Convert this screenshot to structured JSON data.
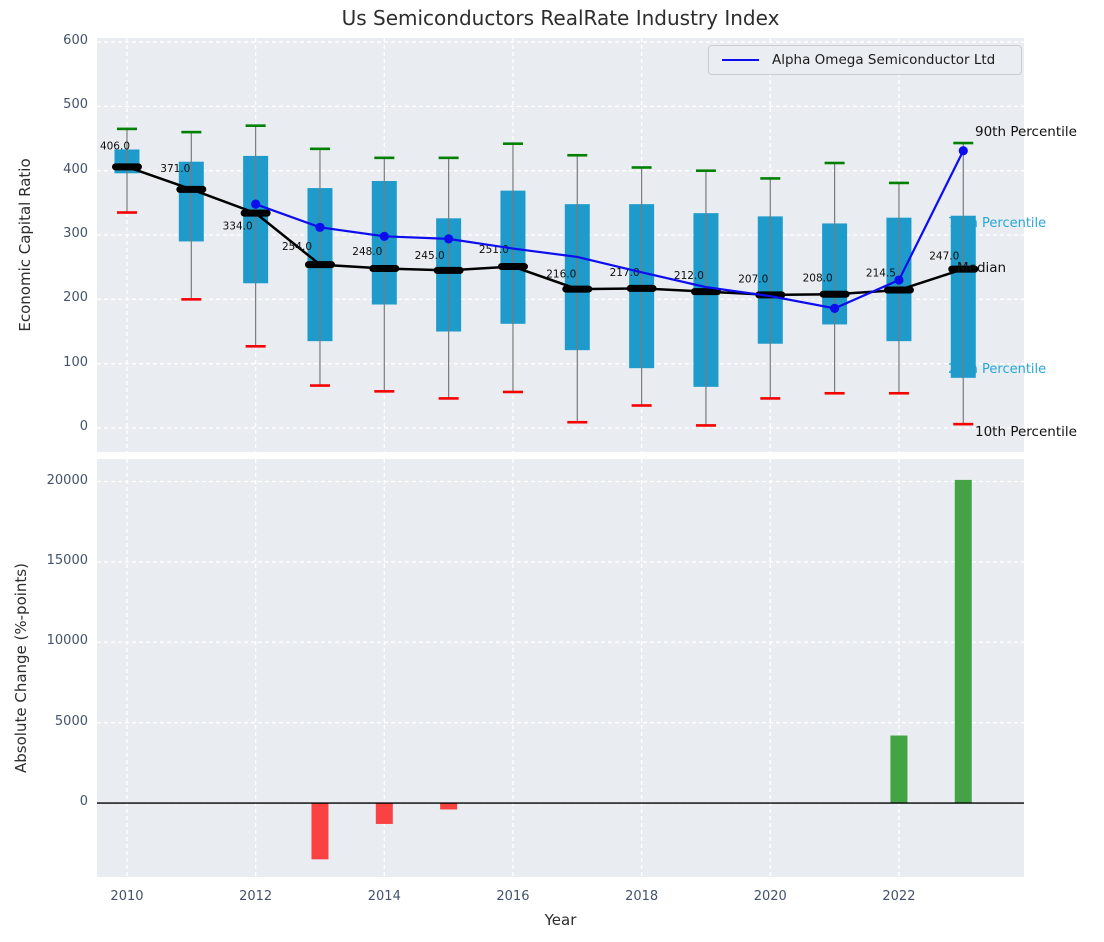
{
  "title": "Us Semiconductors RealRate Industry Index",
  "legend": {
    "series_label": "Alpha Omega Semiconductor Ltd"
  },
  "axes": {
    "xlabel": "Year",
    "top_ylabel": "Economic Capital Ratio",
    "bottom_ylabel": "Absolute Change (%-points)",
    "top_yticks": [
      0,
      100,
      200,
      300,
      400,
      500,
      600
    ],
    "bottom_yticks": [
      0,
      5000,
      10000,
      15000,
      20000
    ],
    "xticks": [
      2010,
      2012,
      2014,
      2016,
      2018,
      2020,
      2022
    ]
  },
  "annotations": {
    "p90": "90th Percentile",
    "p75": "75th Percentile",
    "median_label": "Median",
    "p25": "25th Percentile",
    "p10": "10th Percentile"
  },
  "colors": {
    "panel_bg": "#e9edf1",
    "grid": "#ffffff",
    "box": "#1f9bcb",
    "teal_text": "#29a7d7",
    "green_cap": "#008000",
    "red_cap": "#f80000",
    "whisker": "#7a7a7a",
    "median": "#000000",
    "company_line": "#0d0dee",
    "bar_positive": "#44a344",
    "bar_negative": "#fb4242",
    "zero_line": "#000000"
  },
  "chart_data": [
    {
      "type": "boxplot+line",
      "title": "Us Semiconductors RealRate Industry Index",
      "ylabel": "Economic Capital Ratio",
      "ylim": [
        -37,
        606
      ],
      "xlim": [
        2009.53,
        2023.94
      ],
      "grid": true,
      "legend_position": "upper right",
      "years": [
        2010,
        2011,
        2012,
        2013,
        2014,
        2015,
        2016,
        2017,
        2018,
        2019,
        2020,
        2021,
        2022,
        2023
      ],
      "median": [
        406,
        371,
        334,
        254,
        248,
        245,
        251,
        216,
        217,
        212,
        207,
        208,
        214.5,
        247
      ],
      "median_labels": [
        "406.0",
        "371.0",
        "334.0",
        "254.0",
        "248.0",
        "245.0",
        "251.0",
        "216.0",
        "217.0",
        "212.0",
        "207.0",
        "208.0",
        "214.5",
        "247.0"
      ],
      "p25": [
        396,
        290,
        225,
        135,
        192,
        150,
        162,
        121,
        93,
        64,
        131,
        161,
        135,
        78
      ],
      "p75": [
        433,
        414,
        423,
        373,
        384,
        326,
        369,
        348,
        348,
        334,
        329,
        318,
        327,
        330
      ],
      "p10": [
        335,
        200,
        127,
        66,
        57,
        46,
        56,
        9,
        35,
        4,
        46,
        54,
        54,
        6
      ],
      "p90": [
        465,
        460,
        470,
        434,
        420,
        420,
        442,
        424,
        405,
        400,
        388,
        412,
        381,
        443
      ],
      "company_series": {
        "name": "Alpha Omega Semiconductor Ltd",
        "values": [
          null,
          null,
          348,
          312,
          298,
          294,
          279,
          266,
          242,
          219,
          205,
          186,
          230,
          431
        ],
        "marker_years": [
          2012,
          2013,
          2014,
          2015,
          2021,
          2022,
          2023
        ]
      }
    },
    {
      "type": "bar",
      "ylabel": "Absolute Change (%-points)",
      "xlabel": "Year",
      "ylim": [
        -4600,
        21400
      ],
      "grid": true,
      "years": [
        2010,
        2011,
        2012,
        2013,
        2014,
        2015,
        2016,
        2017,
        2018,
        2019,
        2020,
        2021,
        2022,
        2023
      ],
      "values": [
        0,
        0,
        0,
        -3500,
        -1300,
        -400,
        0,
        0,
        0,
        0,
        0,
        0,
        4200,
        20100
      ]
    }
  ]
}
